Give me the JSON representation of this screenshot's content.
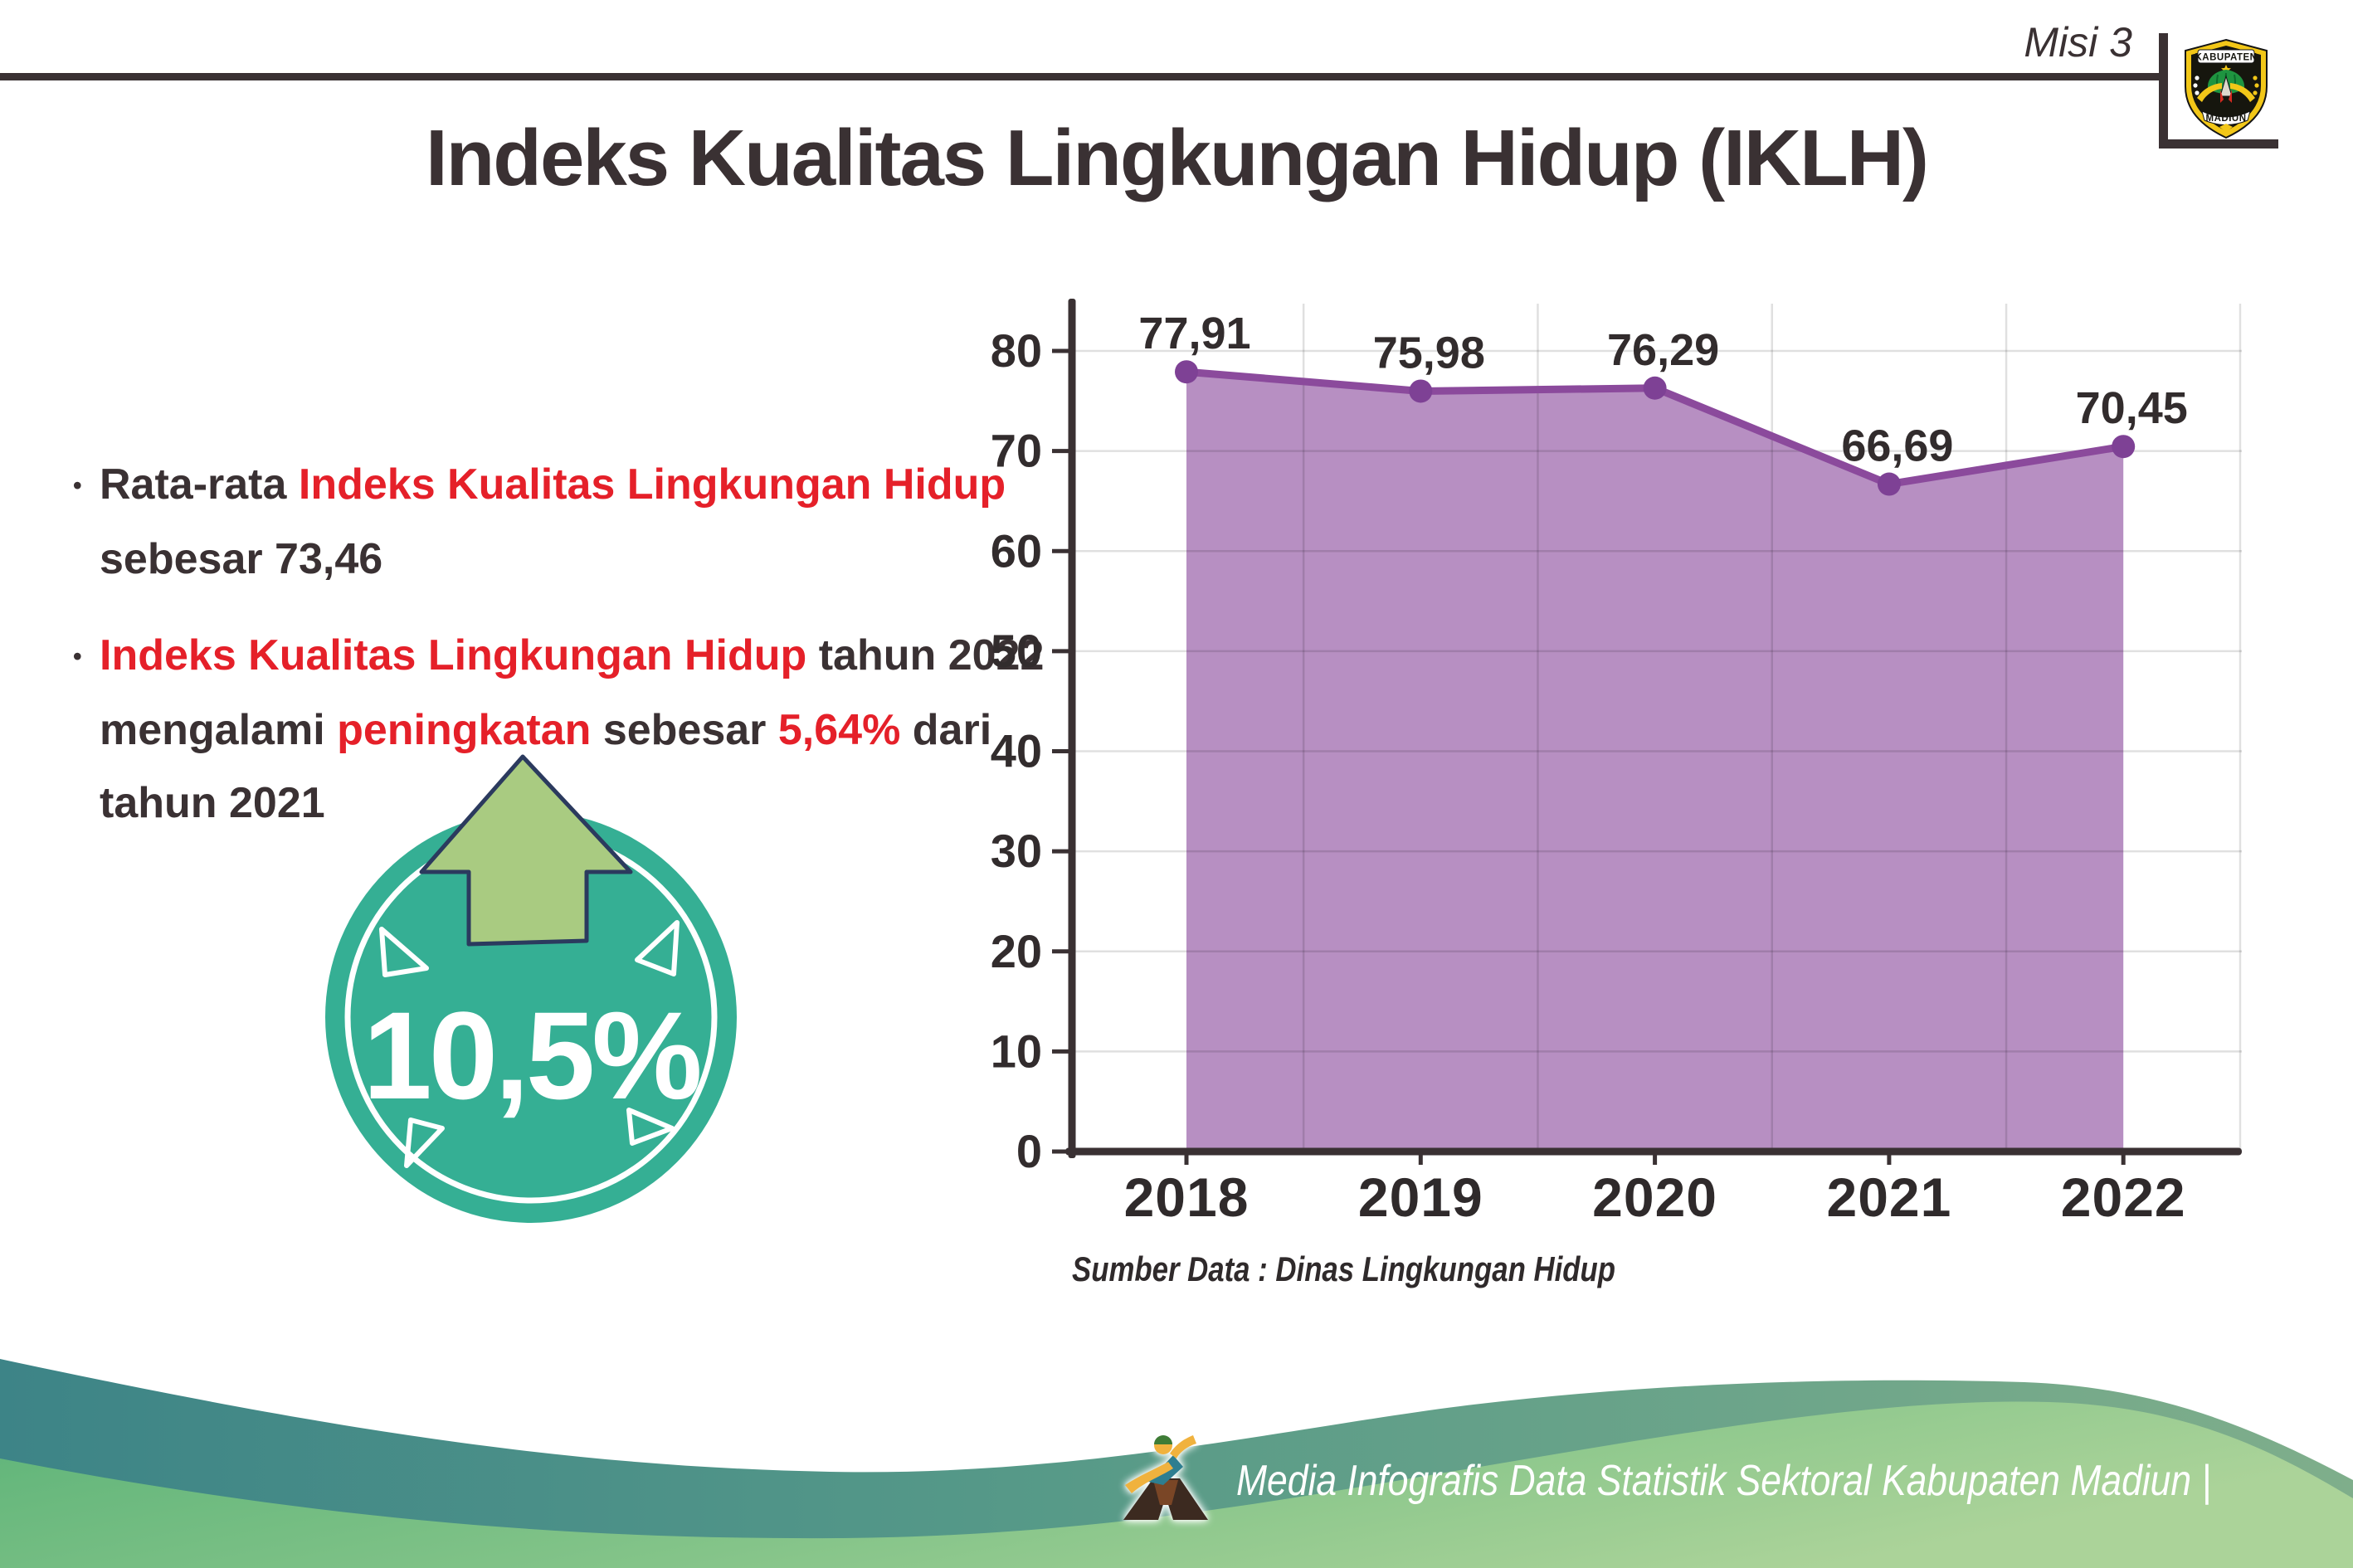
{
  "header": {
    "misi": "Misi 3",
    "title": "Indeks Kualitas Lingkungan Hidup (IKLH)",
    "logo_top": "KABUPATEN",
    "logo_bottom": "MADIUN"
  },
  "bullets": {
    "para1": {
      "lines": [
        [
          {
            "t": "•",
            "b": true,
            "c": "dark"
          },
          {
            "t": "Rata-rata ",
            "c": "dark"
          },
          {
            "t": "Indeks Kualitas Lingkungan Hidup",
            "c": "red"
          }
        ],
        [
          {
            "t": "sebesar 73,46",
            "c": "dark"
          }
        ]
      ]
    },
    "para2": {
      "lines": [
        [
          {
            "t": "•",
            "b": true,
            "c": "dark"
          },
          {
            "t": "Indeks Kualitas Lingkungan Hidup",
            "c": "red"
          },
          {
            "t": " tahun 2022",
            "c": "dark"
          }
        ],
        [
          {
            "t": "mengalami ",
            "c": "dark"
          },
          {
            "t": "peningkatan",
            "c": "red"
          },
          {
            "t": " sebesar ",
            "c": "dark"
          },
          {
            "t": "5,64%",
            "c": "red"
          },
          {
            "t": " dari",
            "c": "dark"
          }
        ],
        [
          {
            "t": "tahun 2021",
            "c": "dark"
          }
        ]
      ]
    }
  },
  "badge": {
    "value": "10,5%"
  },
  "chart_data": {
    "type": "area",
    "title": "Indeks Kualitas Lingkungan Hidup (IKLH)",
    "categories": [
      "2018",
      "2019",
      "2020",
      "2021",
      "2022"
    ],
    "values": [
      77.91,
      75.98,
      76.29,
      66.69,
      70.45
    ],
    "value_labels": [
      "77,91",
      "75,98",
      "76,29",
      "66,69",
      "70,45"
    ],
    "yticks": [
      0,
      10,
      20,
      30,
      40,
      50,
      60,
      70,
      80
    ],
    "ylim": [
      0,
      84.7
    ],
    "xlabel": "",
    "ylabel": "",
    "grid": true,
    "legend": "none",
    "line_color": "#8b4a9c",
    "fill_color": "#b78fc2",
    "marker_color": "#7e4195",
    "source": "Sumber Data : Dinas Lingkungan Hidup"
  },
  "footer": {
    "text": "Media Infografis Data Statistik Sektoral Kabupaten Madiun |"
  },
  "colors": {
    "dark": "#3a3133",
    "red": "#e52029",
    "badge_teal": "#35af94",
    "arrow_green": "#a9cb81",
    "arrow_outline": "#2b3a5e",
    "grid_gray": "#d9d9d9",
    "footer_teal": "#3d8487",
    "footer_sage": "#7fae8b",
    "footer_green": "#5cb378",
    "footer_light_green": "#abd399"
  }
}
